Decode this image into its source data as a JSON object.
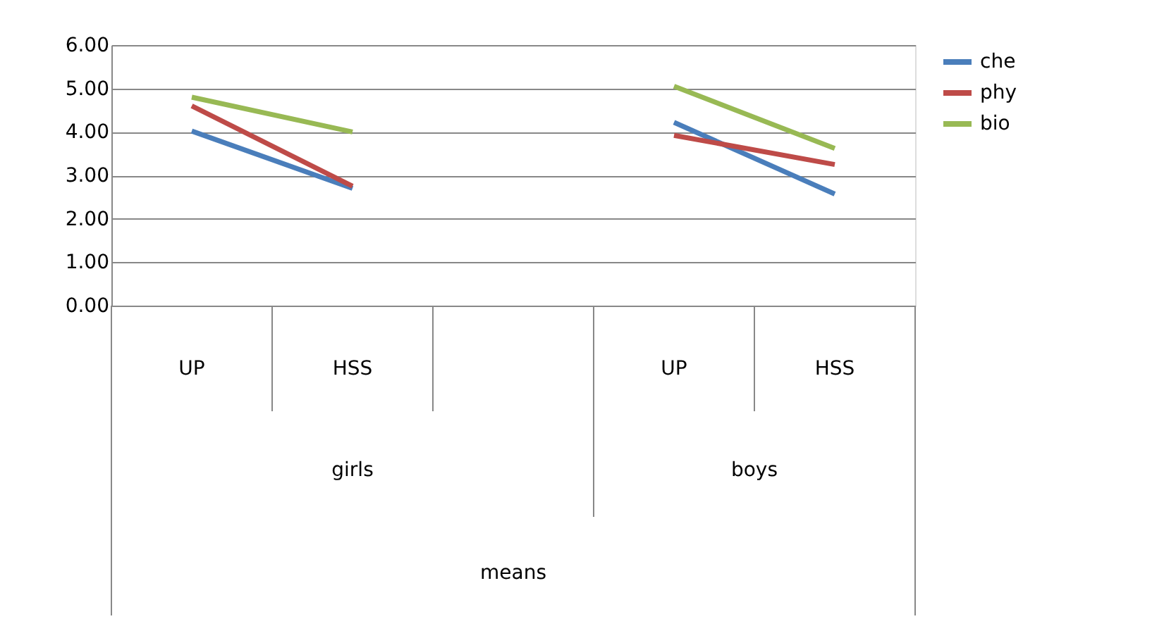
{
  "chart_data": {
    "type": "line",
    "categories": [
      "UP",
      "HSS",
      null,
      "UP",
      "HSS"
    ],
    "series": [
      {
        "name": "che",
        "color": "#4a7ebb",
        "values": [
          4.02,
          2.7,
          null,
          4.22,
          2.57
        ]
      },
      {
        "name": "phy",
        "color": "#be4b48",
        "values": [
          4.6,
          2.75,
          null,
          3.92,
          3.25
        ]
      },
      {
        "name": "bio",
        "color": "#98b954",
        "values": [
          4.8,
          4.0,
          null,
          5.05,
          3.62
        ]
      }
    ],
    "ylim": [
      0,
      6
    ],
    "yticks": [
      {
        "value": 0,
        "label": "0.00"
      },
      {
        "value": 1,
        "label": "1.00"
      },
      {
        "value": 2,
        "label": "2.00"
      },
      {
        "value": 3,
        "label": "3.00"
      },
      {
        "value": 4,
        "label": "4.00"
      },
      {
        "value": 5,
        "label": "5.00"
      },
      {
        "value": 6,
        "label": "6.00"
      }
    ],
    "annotations": [
      "girls",
      "boys",
      "means"
    ],
    "grid": "y",
    "legend": "right",
    "marker": "none",
    "line_style": "solid"
  }
}
